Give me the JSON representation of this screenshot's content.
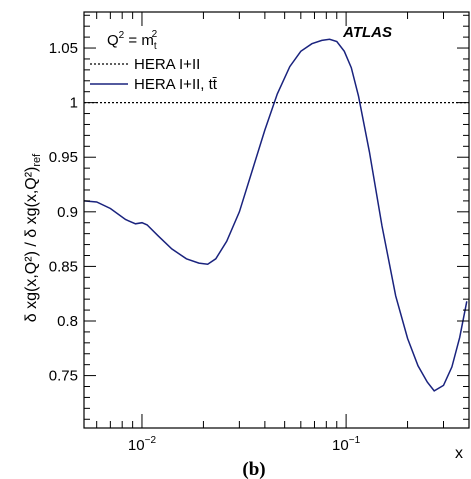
{
  "chart_data": {
    "type": "line",
    "title": "",
    "panel_label": "(b)",
    "experiment_label": "ATLAS",
    "scale_label": {
      "base": "Q",
      "sup1": "2",
      "eq": " = m",
      "sub": "t",
      "sup2": "2"
    },
    "xlabel": "x",
    "ylabel": "δ xg(x,Q²) / δ xg(x,Q²)",
    "ylabel_subscript": "ref",
    "x_scale": "log",
    "xlim": [
      0.0052,
      0.4
    ],
    "ylim": [
      0.702,
      1.083
    ],
    "grid": false,
    "legend_position": "top-left",
    "x_ticks": [
      {
        "value": 0.01,
        "base": "10",
        "exp": "−2"
      },
      {
        "value": 0.1,
        "base": "10",
        "exp": "−1"
      }
    ],
    "y_ticks": [
      {
        "value": 0.75,
        "label": "0.75"
      },
      {
        "value": 0.8,
        "label": "0.8"
      },
      {
        "value": 0.85,
        "label": "0.85"
      },
      {
        "value": 0.9,
        "label": "0.9"
      },
      {
        "value": 0.95,
        "label": "0.95"
      },
      {
        "value": 1.0,
        "label": "1"
      },
      {
        "value": 1.05,
        "label": "1.05"
      }
    ],
    "series": [
      {
        "name": "HERA I+II",
        "style": "dotted",
        "color": "#000000",
        "x": [
          0.0052,
          0.4
        ],
        "y": [
          1.0,
          1.0
        ]
      },
      {
        "name": "HERA I+II, tt̄",
        "style": "solid",
        "color": "#1a237e",
        "x": [
          0.0052,
          0.006,
          0.007,
          0.0083,
          0.0093,
          0.01,
          0.0106,
          0.012,
          0.014,
          0.0165,
          0.019,
          0.021,
          0.023,
          0.026,
          0.03,
          0.035,
          0.04,
          0.046,
          0.053,
          0.06,
          0.068,
          0.076,
          0.083,
          0.09,
          0.098,
          0.106,
          0.115,
          0.13,
          0.15,
          0.175,
          0.2,
          0.225,
          0.25,
          0.27,
          0.3,
          0.33,
          0.36,
          0.39
        ],
        "y": [
          0.91,
          0.909,
          0.903,
          0.893,
          0.889,
          0.89,
          0.888,
          0.878,
          0.866,
          0.857,
          0.853,
          0.852,
          0.857,
          0.873,
          0.9,
          0.94,
          0.975,
          1.008,
          1.033,
          1.047,
          1.054,
          1.057,
          1.058,
          1.056,
          1.047,
          1.032,
          1.006,
          0.955,
          0.887,
          0.823,
          0.784,
          0.759,
          0.744,
          0.736,
          0.741,
          0.758,
          0.785,
          0.818
        ]
      }
    ]
  }
}
